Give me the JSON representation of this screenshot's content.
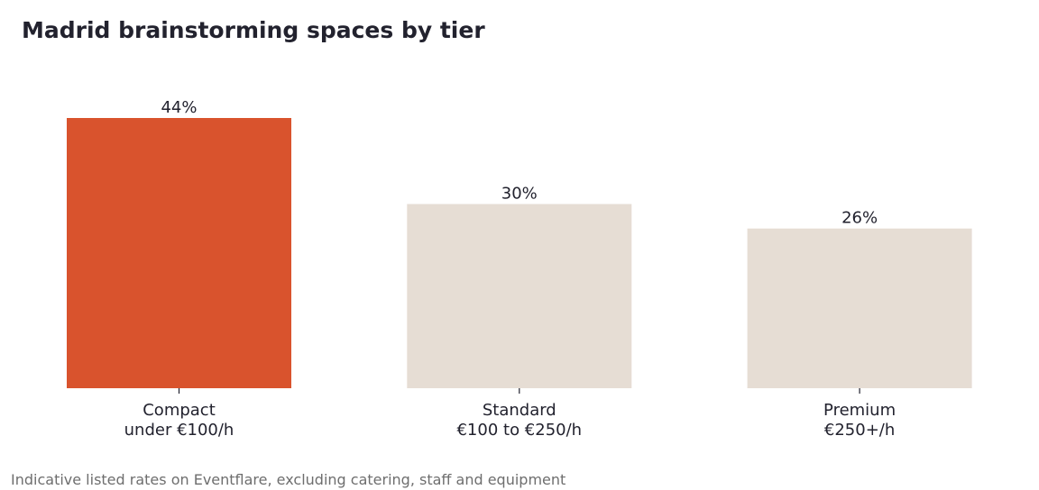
{
  "chart_data": {
    "type": "bar",
    "title": "Madrid brainstorming spaces by tier",
    "categories": [
      [
        "Compact",
        "under €100/h"
      ],
      [
        "Standard",
        "€100 to €250/h"
      ],
      [
        "Premium",
        "€250+/h"
      ]
    ],
    "values": [
      44,
      30,
      26
    ],
    "value_labels": [
      "44%",
      "30%",
      "26%"
    ],
    "unit": "%",
    "xlabel": "",
    "ylabel": "",
    "ylim": [
      0,
      44
    ],
    "grid": false,
    "legend": "none",
    "colors": {
      "highlight": "#d9532d",
      "default": "#e6ddd4",
      "text": "#22222e",
      "tick": "#22222e"
    },
    "highlight_index": 0
  },
  "footnote": "Indicative listed rates on Eventflare, excluding catering, staff and equipment"
}
